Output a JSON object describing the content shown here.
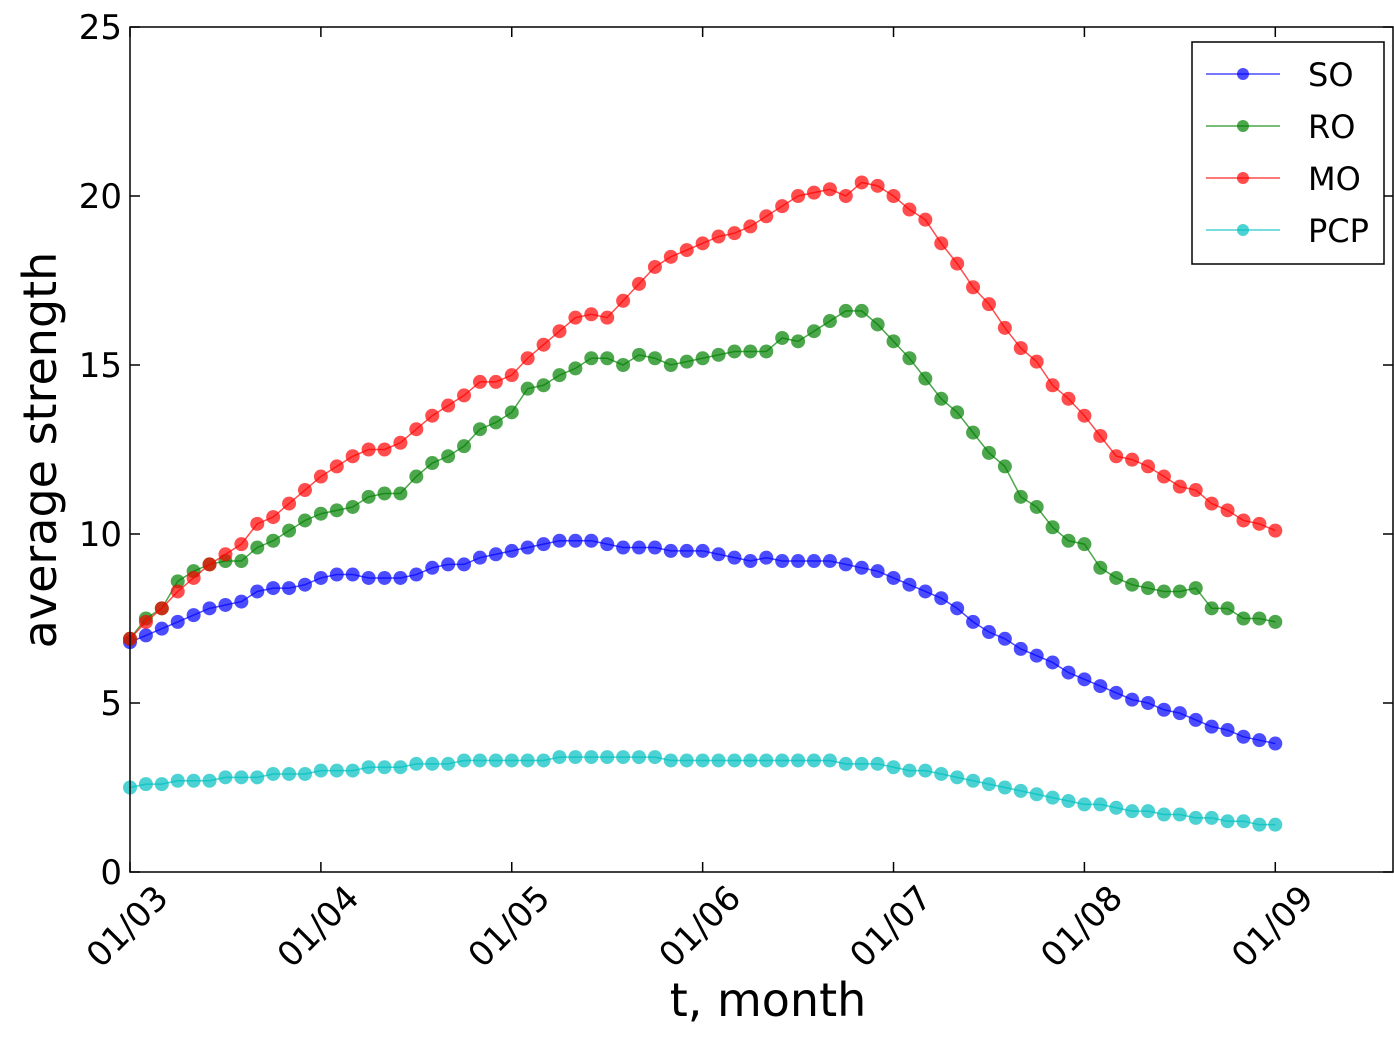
{
  "chart_data": {
    "type": "line",
    "x_label": "t, month",
    "y_label": "average strength",
    "x": [
      0,
      1,
      2,
      3,
      4,
      5,
      6,
      7,
      8,
      9,
      10,
      11,
      12,
      13,
      14,
      15,
      16,
      17,
      18,
      19,
      20,
      21,
      22,
      23,
      24,
      25,
      26,
      27,
      28,
      29,
      30,
      31,
      32,
      33,
      34,
      35,
      36,
      37,
      38,
      39,
      40,
      41,
      42,
      43,
      44,
      45,
      46,
      47,
      48,
      49,
      50,
      51,
      52,
      53,
      54,
      55,
      56,
      57,
      58,
      59,
      60,
      61,
      62,
      63,
      64,
      65,
      66,
      67,
      68,
      69,
      70,
      71,
      72
    ],
    "xlim": [
      0,
      79.4
    ],
    "xticks": [
      {
        "value": 0,
        "label": "01/03"
      },
      {
        "value": 12,
        "label": "01/04"
      },
      {
        "value": 24,
        "label": "01/05"
      },
      {
        "value": 36,
        "label": "01/06"
      },
      {
        "value": 48,
        "label": "01/07"
      },
      {
        "value": 60,
        "label": "01/08"
      },
      {
        "value": 72,
        "label": "01/09"
      }
    ],
    "ylim": [
      0,
      25
    ],
    "yticks": [
      0,
      5,
      10,
      15,
      20,
      25
    ],
    "grid": false,
    "legend": "upper right",
    "series": [
      {
        "name": "SO",
        "color": "#0000ff",
        "values": [
          6.8,
          7.0,
          7.2,
          7.4,
          7.6,
          7.8,
          7.9,
          8.0,
          8.3,
          8.4,
          8.4,
          8.5,
          8.7,
          8.8,
          8.8,
          8.7,
          8.7,
          8.7,
          8.8,
          9.0,
          9.1,
          9.1,
          9.3,
          9.4,
          9.5,
          9.6,
          9.7,
          9.8,
          9.8,
          9.8,
          9.7,
          9.6,
          9.6,
          9.6,
          9.5,
          9.5,
          9.5,
          9.4,
          9.3,
          9.2,
          9.3,
          9.2,
          9.2,
          9.2,
          9.2,
          9.1,
          9.0,
          8.9,
          8.7,
          8.5,
          8.3,
          8.1,
          7.8,
          7.4,
          7.1,
          6.9,
          6.6,
          6.4,
          6.2,
          5.9,
          5.7,
          5.5,
          5.3,
          5.1,
          5.0,
          4.8,
          4.7,
          4.5,
          4.3,
          4.2,
          4.0,
          3.9,
          3.8
        ]
      },
      {
        "name": "RO",
        "color": "#008000",
        "values": [
          6.9,
          7.5,
          7.8,
          8.6,
          8.9,
          9.1,
          9.2,
          9.2,
          9.6,
          9.8,
          10.1,
          10.4,
          10.6,
          10.7,
          10.8,
          11.1,
          11.2,
          11.2,
          11.7,
          12.1,
          12.3,
          12.6,
          13.1,
          13.3,
          13.6,
          14.3,
          14.4,
          14.7,
          14.9,
          15.2,
          15.2,
          15.0,
          15.3,
          15.2,
          15.0,
          15.1,
          15.2,
          15.3,
          15.4,
          15.4,
          15.4,
          15.8,
          15.7,
          16.0,
          16.3,
          16.6,
          16.6,
          16.2,
          15.7,
          15.2,
          14.6,
          14.0,
          13.6,
          13.0,
          12.4,
          12.0,
          11.1,
          10.8,
          10.2,
          9.8,
          9.7,
          9.0,
          8.7,
          8.5,
          8.4,
          8.3,
          8.3,
          8.4,
          7.8,
          7.8,
          7.5,
          7.5,
          7.4
        ]
      },
      {
        "name": "MO",
        "color": "#ff0000",
        "values": [
          6.9,
          7.4,
          7.8,
          8.3,
          8.7,
          9.1,
          9.4,
          9.7,
          10.3,
          10.5,
          10.9,
          11.3,
          11.7,
          12.0,
          12.3,
          12.5,
          12.5,
          12.7,
          13.1,
          13.5,
          13.8,
          14.1,
          14.5,
          14.5,
          14.7,
          15.2,
          15.6,
          16.0,
          16.4,
          16.5,
          16.4,
          16.9,
          17.4,
          17.9,
          18.2,
          18.4,
          18.6,
          18.8,
          18.9,
          19.1,
          19.4,
          19.7,
          20.0,
          20.1,
          20.2,
          20.0,
          20.4,
          20.3,
          20.0,
          19.6,
          19.3,
          18.6,
          18.0,
          17.3,
          16.8,
          16.1,
          15.5,
          15.1,
          14.4,
          14.0,
          13.5,
          12.9,
          12.3,
          12.2,
          12.0,
          11.7,
          11.4,
          11.3,
          10.9,
          10.7,
          10.4,
          10.3,
          10.1
        ]
      },
      {
        "name": "PCP",
        "color": "#00bfbf",
        "values": [
          2.5,
          2.6,
          2.6,
          2.7,
          2.7,
          2.7,
          2.8,
          2.8,
          2.8,
          2.9,
          2.9,
          2.9,
          3.0,
          3.0,
          3.0,
          3.1,
          3.1,
          3.1,
          3.2,
          3.2,
          3.2,
          3.3,
          3.3,
          3.3,
          3.3,
          3.3,
          3.3,
          3.4,
          3.4,
          3.4,
          3.4,
          3.4,
          3.4,
          3.4,
          3.3,
          3.3,
          3.3,
          3.3,
          3.3,
          3.3,
          3.3,
          3.3,
          3.3,
          3.3,
          3.3,
          3.2,
          3.2,
          3.2,
          3.1,
          3.0,
          3.0,
          2.9,
          2.8,
          2.7,
          2.6,
          2.5,
          2.4,
          2.3,
          2.2,
          2.1,
          2.0,
          2.0,
          1.9,
          1.8,
          1.8,
          1.7,
          1.7,
          1.6,
          1.6,
          1.5,
          1.5,
          1.4,
          1.4
        ]
      }
    ]
  }
}
